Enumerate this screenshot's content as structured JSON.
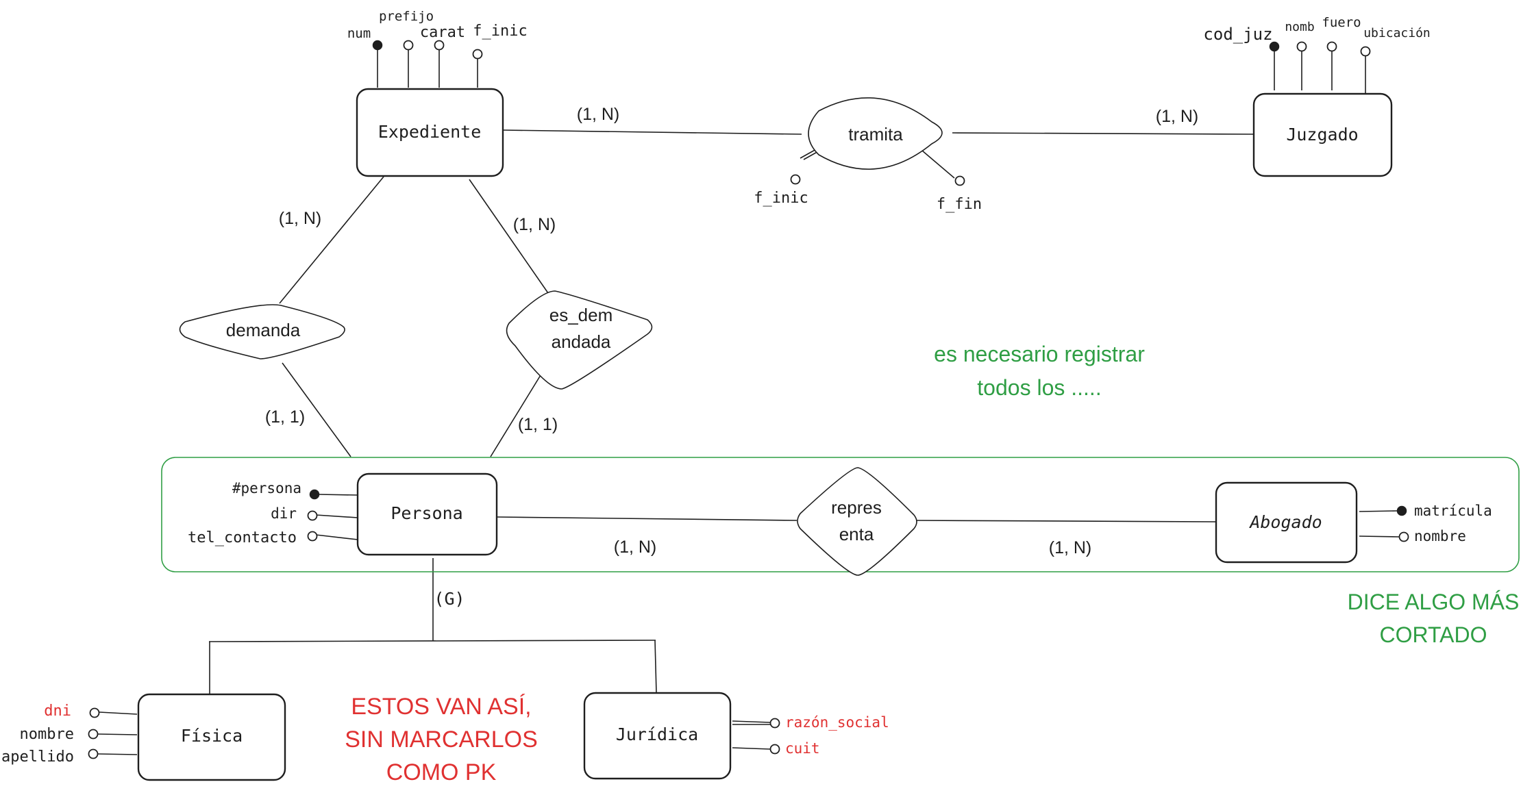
{
  "entities": {
    "expediente": "Expediente",
    "juzgado": "Juzgado",
    "persona": "Persona",
    "abogado": "Abogado",
    "fisica": "Física",
    "juridica": "Jurídica"
  },
  "relationships": {
    "tramita": "tramita",
    "demanda": "demanda",
    "es_demandada_line1": "es_dem",
    "es_demandada_line2": "andada",
    "representa_line1": "repres",
    "representa_line2": "enta"
  },
  "attributes": {
    "expediente": [
      "num",
      "prefijo",
      "carat",
      "f_inic"
    ],
    "juzgado": [
      "cod_juz",
      "nomb",
      "fuero",
      "ubicación"
    ],
    "tramita": [
      "f_inic",
      "f_fin"
    ],
    "persona": [
      "#persona",
      "dir",
      "tel_contacto"
    ],
    "abogado": [
      "matrícula",
      "nombre"
    ],
    "fisica": [
      "dni",
      "nombre",
      "apellido"
    ],
    "juridica": [
      "razón_social",
      "cuit"
    ]
  },
  "cardinalities": {
    "expediente_tramita": "(1, N)",
    "juzgado_tramita": "(1, N)",
    "expediente_demanda": "(1, N)",
    "expediente_es_demandada": "(1, N)",
    "persona_demanda": "(1, 1)",
    "persona_es_demandada": "(1, 1)",
    "persona_representa": "(1, N)",
    "abogado_representa": "(1, N)",
    "generalization": "(G)"
  },
  "notes": {
    "green_top_line1": "es necesario registrar",
    "green_top_line2": "todos los .....",
    "green_right_line1": "DICE ALGO MÁS",
    "green_right_line2": "CORTADO",
    "red_line1": "ESTOS VAN ASÍ,",
    "red_line2": "SIN MARCARLOS",
    "red_line3": "COMO PK"
  },
  "colors": {
    "ink": "#1e1e1e",
    "note_green": "#2f9e44",
    "note_red": "#e03131"
  }
}
